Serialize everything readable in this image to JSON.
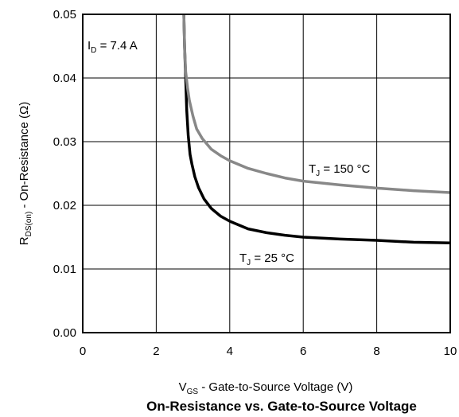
{
  "chart_data": {
    "type": "line",
    "title": "On-Resistance vs. Gate-to-Source Voltage",
    "xlabel": {
      "main": "V",
      "sub": "GS",
      "rest": " - Gate-to-Source Voltage (V)"
    },
    "ylabel": {
      "main": "R",
      "sub": "DS(on)",
      "rest": " - On-Resistance (Ω)"
    },
    "xlim": [
      0,
      10
    ],
    "ylim": [
      0,
      0.05
    ],
    "grid": true,
    "xticks": [
      0,
      2,
      4,
      6,
      8,
      10
    ],
    "xtick_labels": [
      "0",
      "2",
      "4",
      "6",
      "8",
      "10"
    ],
    "yticks": [
      0,
      0.01,
      0.02,
      0.03,
      0.04,
      0.05
    ],
    "ytick_labels": [
      "0.00",
      "0.01",
      "0.02",
      "0.03",
      "0.04",
      "0.05"
    ],
    "annotations": {
      "id": {
        "main": "I",
        "sub": "D",
        "rest": " = 7.4 A"
      },
      "tj150": {
        "main": "T",
        "sub": "J",
        "rest": " = 150 °C"
      },
      "tj25": {
        "main": "T",
        "sub": "J",
        "rest": " = 25 °C"
      }
    },
    "series": [
      {
        "label": {
          "main": "T",
          "sub": "J",
          "rest": " = 25 °C"
        },
        "color": "#000000",
        "x": [
          2.75,
          2.77,
          2.8,
          2.83,
          2.87,
          2.92,
          2.97,
          3.05,
          3.15,
          3.3,
          3.5,
          3.75,
          4.0,
          4.5,
          5.0,
          5.5,
          6.0,
          7.0,
          8.0,
          9.0,
          10.0
        ],
        "y": [
          0.05,
          0.045,
          0.04,
          0.035,
          0.031,
          0.028,
          0.0265,
          0.0245,
          0.0228,
          0.021,
          0.0195,
          0.0183,
          0.0175,
          0.0163,
          0.0157,
          0.0153,
          0.015,
          0.0147,
          0.0145,
          0.0142,
          0.0141
        ]
      },
      {
        "label": {
          "main": "T",
          "sub": "J",
          "rest": " = 150 °C"
        },
        "color": "#888888",
        "x": [
          2.75,
          2.77,
          2.8,
          2.85,
          2.9,
          3.0,
          3.1,
          3.25,
          3.5,
          3.75,
          4.0,
          4.5,
          5.0,
          5.5,
          6.0,
          7.0,
          8.0,
          9.0,
          10.0
        ],
        "y": [
          0.05,
          0.045,
          0.041,
          0.0385,
          0.0365,
          0.034,
          0.032,
          0.0305,
          0.0288,
          0.0278,
          0.027,
          0.0258,
          0.025,
          0.0243,
          0.0238,
          0.0232,
          0.0227,
          0.0223,
          0.022
        ]
      }
    ]
  }
}
